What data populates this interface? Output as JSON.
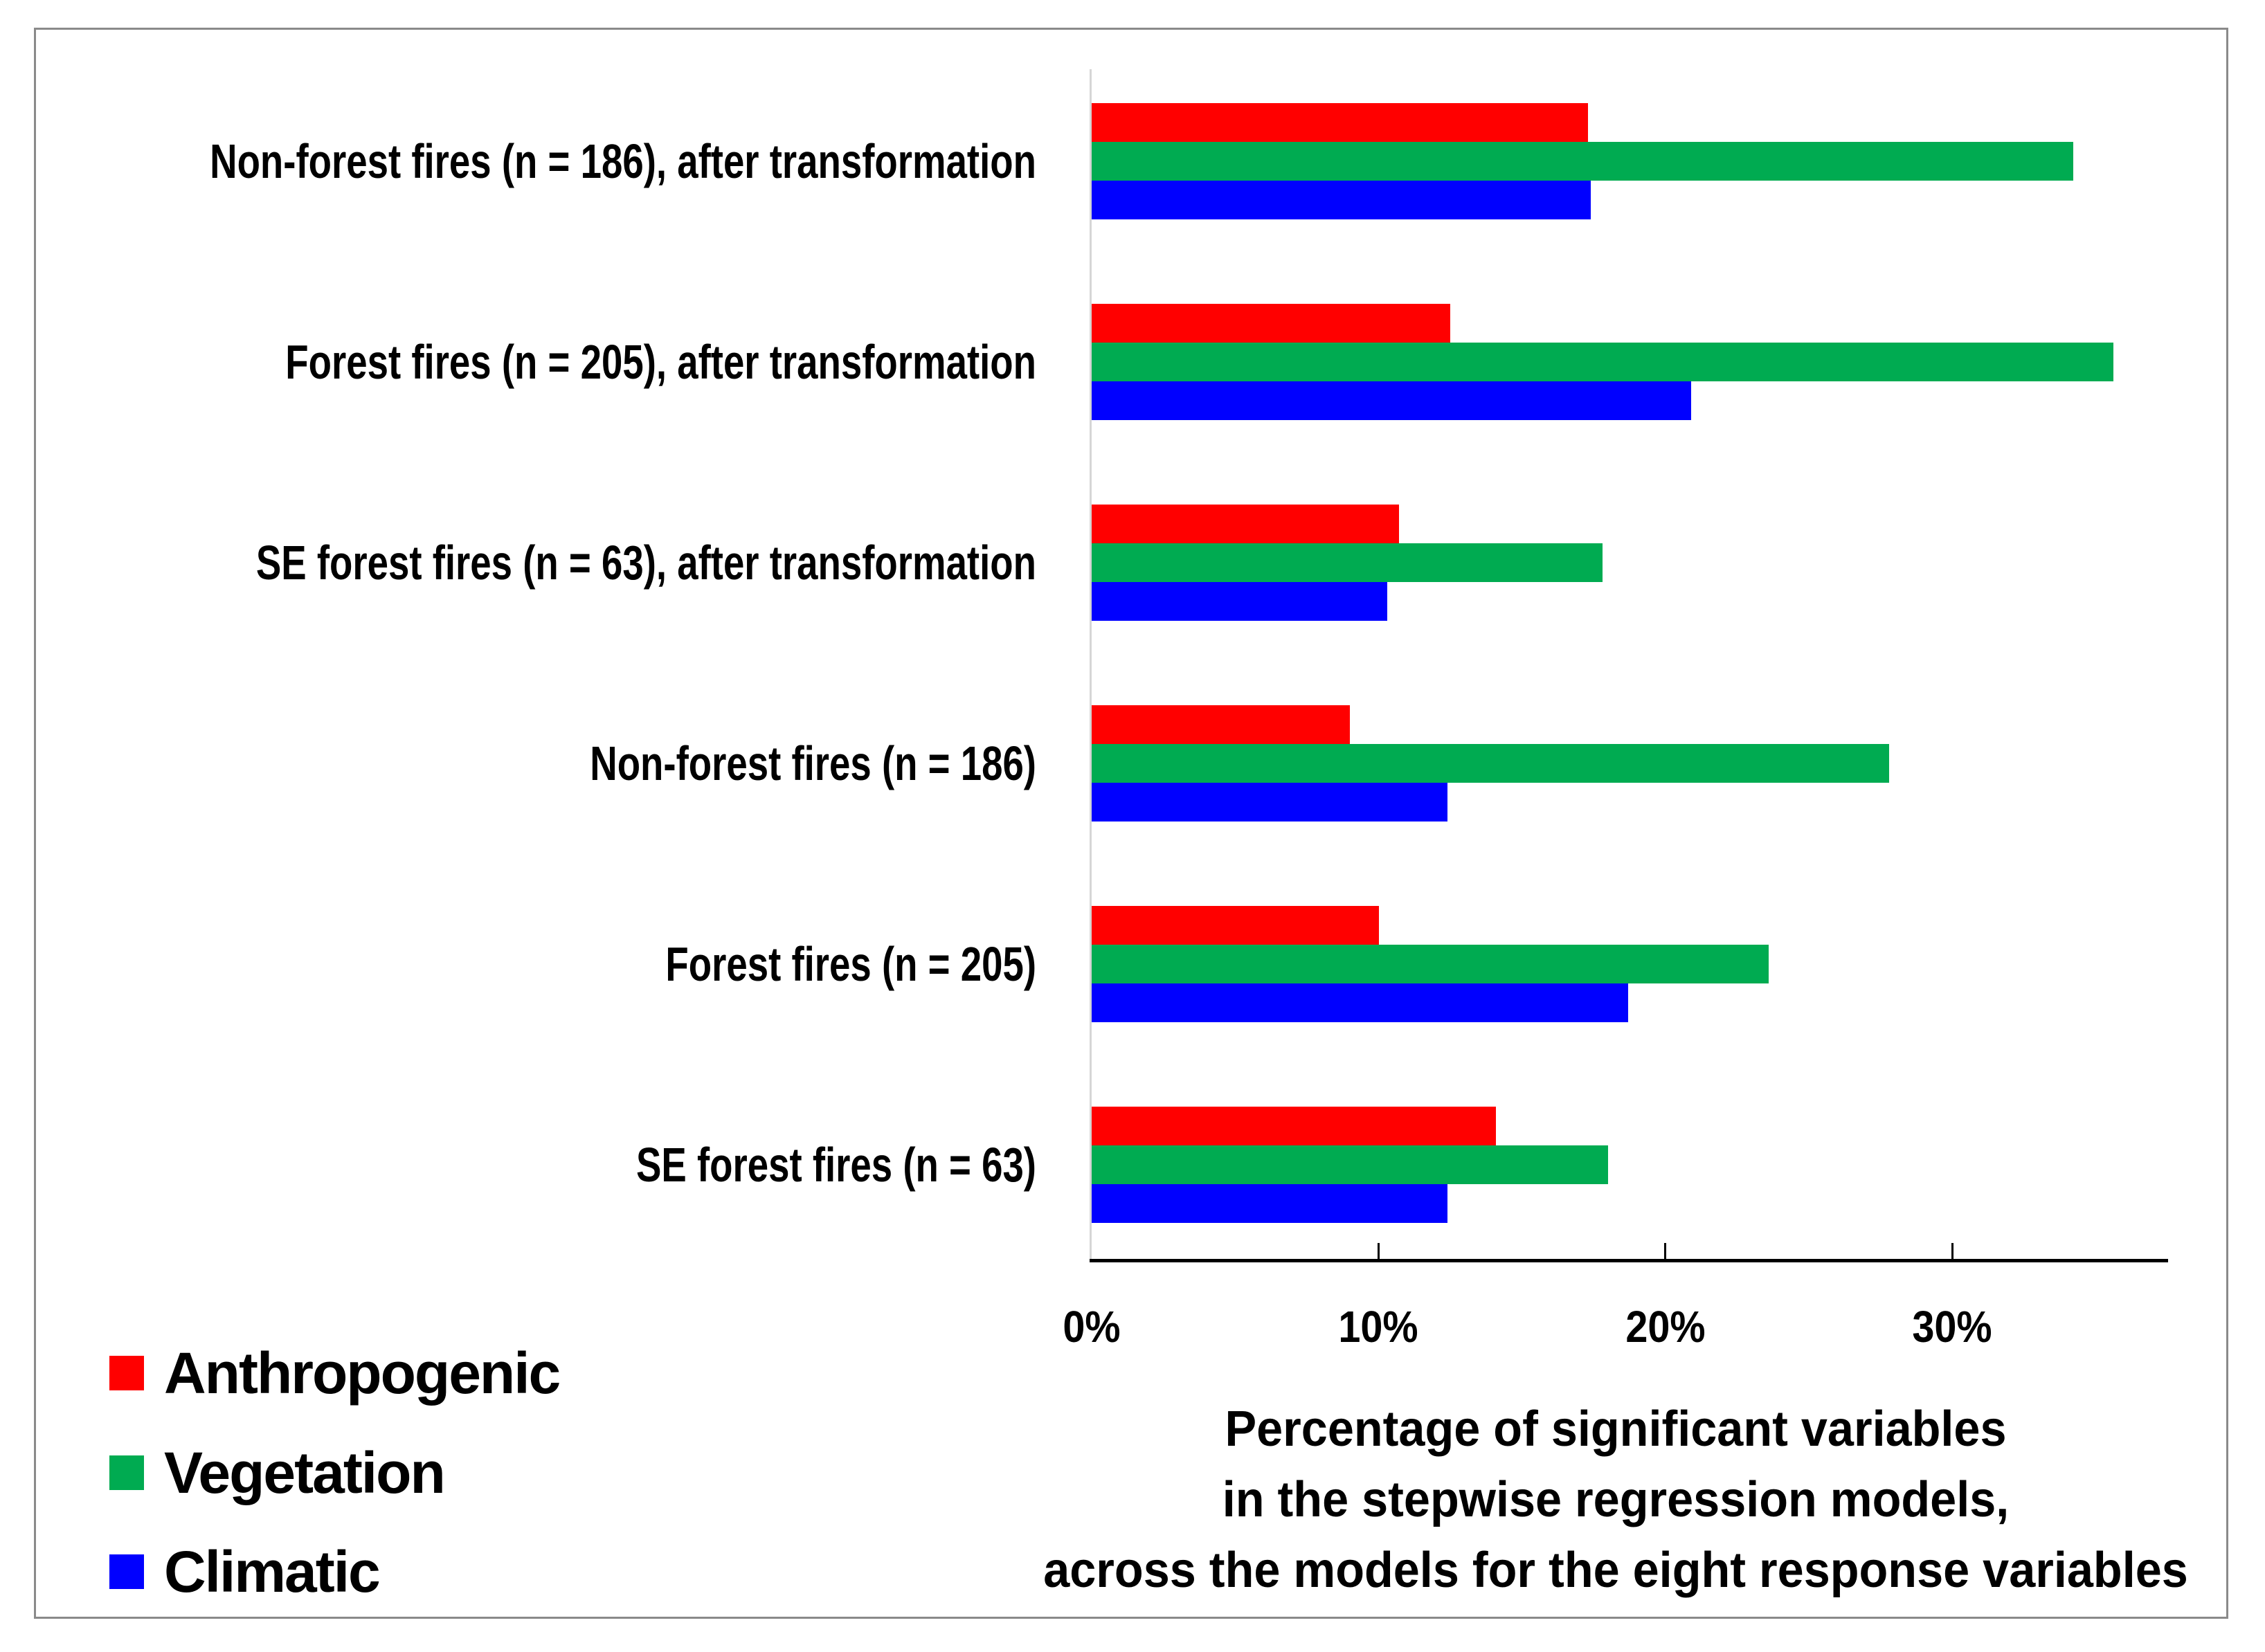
{
  "chart_data": {
    "type": "bar",
    "orientation": "horizontal",
    "title": "",
    "categories": [
      "Non-forest fires (n = 186), after transformation",
      "Forest fires (n = 205), after transformation",
      "SE forest fires (n = 63), after transformation",
      "Non-forest fires (n = 186)",
      "Forest fires (n = 205)",
      "SE forest fires (n = 63)"
    ],
    "series": [
      {
        "name": "Anthropogenic",
        "color": "#ff0000",
        "values": [
          17.3,
          12.5,
          10.7,
          9.0,
          10.0,
          14.1
        ]
      },
      {
        "name": "Vegetation",
        "color": "#00ab51",
        "values": [
          34.2,
          35.6,
          17.8,
          27.8,
          23.6,
          18.0
        ]
      },
      {
        "name": "Climatic",
        "color": "#0000ff",
        "values": [
          17.4,
          20.9,
          10.3,
          12.4,
          18.7,
          12.4
        ]
      }
    ],
    "xlabel_lines": [
      "Percentage of significant variables",
      "in the stepwise regression models,",
      "across the models for the eight response variables"
    ],
    "x_ticks": [
      "0%",
      "10%",
      "20%",
      "30%"
    ],
    "x_tick_values": [
      0,
      10,
      20,
      30
    ],
    "xlim": [
      0,
      37.5
    ],
    "grid": false,
    "legend_position": "bottom-left",
    "axis_line_color": "#000000",
    "plot_edge_color": "#d6d6d6",
    "border_color": "#8a8a8a"
  }
}
